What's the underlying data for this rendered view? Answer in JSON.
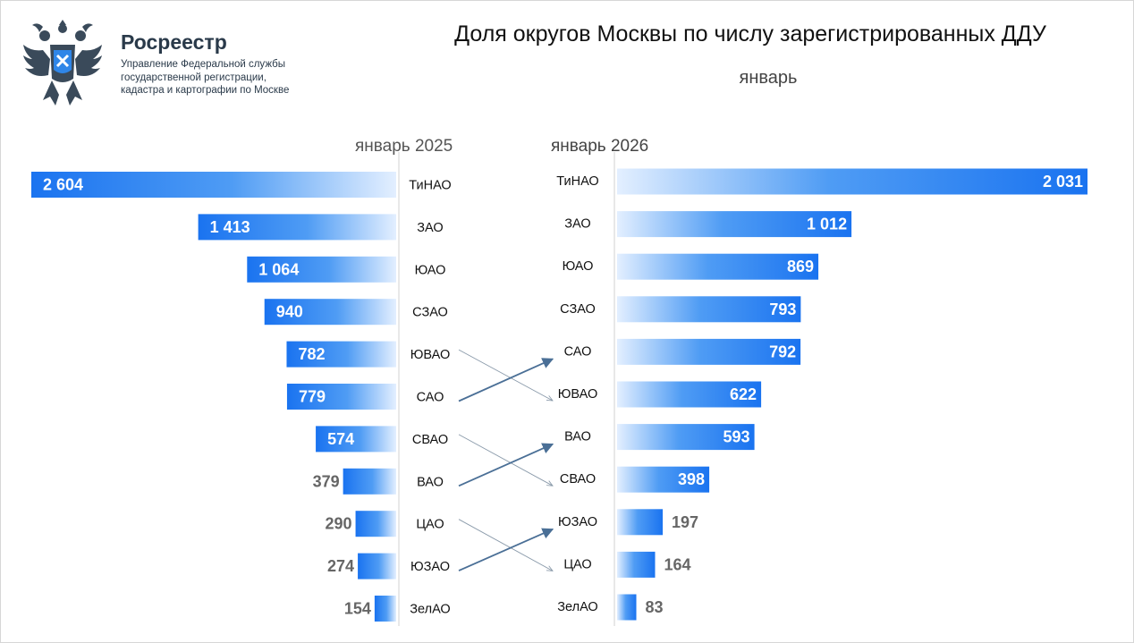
{
  "header": {
    "brand": "Росреестр",
    "org_lines": [
      "Управление Федеральной службы",
      "государственной регистрации,",
      "кадастра и картографии по Москве"
    ],
    "logo_icon": "double-headed-eagle-emblem-icon"
  },
  "chart_data": {
    "type": "bar",
    "title": "Доля округов Москвы по числу зарегистрированных ДДУ",
    "subtitle": "январь",
    "accent_color": "#1a73f0",
    "panels": [
      {
        "name": "январь 2025",
        "direction": "left",
        "categories": [
          "ТиНАО",
          "ЗАО",
          "ЮАО",
          "СЗАО",
          "ЮВАО",
          "САО",
          "СВАО",
          "ВАО",
          "ЦАО",
          "ЮЗАО",
          "ЗелАО"
        ],
        "values": [
          2604,
          1413,
          1064,
          940,
          782,
          779,
          574,
          379,
          290,
          274,
          154
        ],
        "labels": [
          "2 604",
          "1 413",
          "1 064",
          "940",
          "782",
          "779",
          "574",
          "379",
          "290",
          "274",
          "154"
        ]
      },
      {
        "name": "январь 2026",
        "direction": "right",
        "categories": [
          "ТиНАО",
          "ЗАО",
          "ЮАО",
          "СЗАО",
          "САО",
          "ЮВАО",
          "ВАО",
          "СВАО",
          "ЮЗАО",
          "ЦАО",
          "ЗелАО"
        ],
        "values": [
          2031,
          1012,
          869,
          793,
          792,
          622,
          593,
          398,
          197,
          164,
          83
        ],
        "labels": [
          "2 031",
          "1 012",
          "869",
          "793",
          "792",
          "622",
          "593",
          "398",
          "197",
          "164",
          "83"
        ]
      }
    ],
    "rank_changes": [
      {
        "district": "ЮВАО",
        "from_rank": 5,
        "to_rank": 6,
        "direction": "down"
      },
      {
        "district": "САО",
        "from_rank": 6,
        "to_rank": 5,
        "direction": "up"
      },
      {
        "district": "СВАО",
        "from_rank": 7,
        "to_rank": 8,
        "direction": "down"
      },
      {
        "district": "ВАО",
        "from_rank": 8,
        "to_rank": 7,
        "direction": "up"
      },
      {
        "district": "ЦАО",
        "from_rank": 9,
        "to_rank": 10,
        "direction": "down"
      },
      {
        "district": "ЮЗАО",
        "from_rank": 10,
        "to_rank": 9,
        "direction": "up"
      }
    ]
  }
}
